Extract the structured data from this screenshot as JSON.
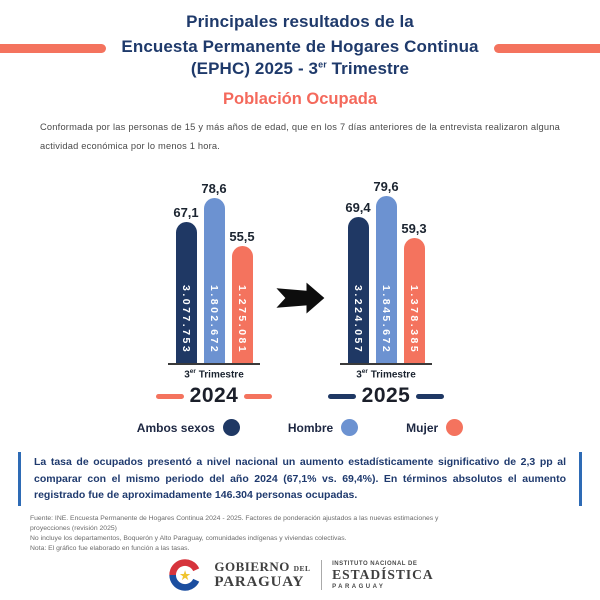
{
  "accent_colors": {
    "navy": "#1F3864",
    "light_blue": "#6C92D1",
    "coral": "#F4735E",
    "callout_bar": "#2E6BB5",
    "title_navy": "#1F3A6B"
  },
  "header": {
    "line1": "Principales resultados de la",
    "line2": "Encuesta Permanente de Hogares Continua",
    "line3_pre": "(EPHC) 2025 - 3",
    "line3_sup": "er",
    "line3_post": " Trimestre"
  },
  "section": {
    "title": "Población Ocupada"
  },
  "description": "Conformada por las personas de 15 y más años de edad, que en los 7 días anteriores de la entrevista realizaron alguna actividad económica por lo menos 1 hora.",
  "chart_data": {
    "type": "bar",
    "legend_position": "bottom",
    "categories": [
      "2024",
      "2025"
    ],
    "series": [
      {
        "name": "Ambos sexos",
        "color": "#1F3864",
        "rates": [
          67.1,
          69.4
        ],
        "absolutes": [
          "3.077.753",
          "3.224.057"
        ]
      },
      {
        "name": "Hombre",
        "color": "#6C92D1",
        "rates": [
          78.6,
          79.6
        ],
        "absolutes": [
          "1.802.672",
          "1.845.672"
        ]
      },
      {
        "name": "Mujer",
        "color": "#F4735E",
        "rates": [
          55.5,
          59.3
        ],
        "absolutes": [
          "1.275.081",
          "1.378.385"
        ]
      }
    ],
    "groups": [
      {
        "year": "2024",
        "period": {
          "pre": "3",
          "sup": "er",
          "post": " Trimestre"
        },
        "year_dash_color": "#F4735E",
        "bars": [
          {
            "series": "Ambos sexos",
            "rate": 67.1,
            "rate_label": "67,1",
            "absolute_label": "3.077.753",
            "color": "#1F3864"
          },
          {
            "series": "Hombre",
            "rate": 78.6,
            "rate_label": "78,6",
            "absolute_label": "1.802.672",
            "color": "#6C92D1"
          },
          {
            "series": "Mujer",
            "rate": 55.5,
            "rate_label": "55,5",
            "absolute_label": "1.275.081",
            "color": "#F4735E"
          }
        ]
      },
      {
        "year": "2025",
        "period": {
          "pre": "3",
          "sup": "er",
          "post": " Trimestre"
        },
        "year_dash_color": "#1F3864",
        "bars": [
          {
            "series": "Ambos sexos",
            "rate": 69.4,
            "rate_label": "69,4",
            "absolute_label": "3.224.057",
            "color": "#1F3864"
          },
          {
            "series": "Hombre",
            "rate": 79.6,
            "rate_label": "79,6",
            "absolute_label": "1.845.672",
            "color": "#6C92D1"
          },
          {
            "series": "Mujer",
            "rate": 59.3,
            "rate_label": "59,3",
            "absolute_label": "1.378.385",
            "color": "#F4735E"
          }
        ]
      }
    ],
    "legend": [
      {
        "label": "Ambos sexos",
        "color": "#1F3864"
      },
      {
        "label": "Hombre",
        "color": "#6C92D1"
      },
      {
        "label": "Mujer",
        "color": "#F4735E"
      }
    ]
  },
  "callout": {
    "text": "La tasa de ocupados presentó a nivel nacional un aumento estadísticamente significativo de 2,3 pp al comparar con el mismo periodo del año 2024 (67,1% vs. 69,4%). En términos absolutos el aumento registrado fue de aproximadamente 146.304 personas ocupadas."
  },
  "footnotes": [
    "Fuente: INE. Encuesta Permanente de Hogares Continua 2024 - 2025.  Factores de ponderación ajustados a las nuevas estimaciones y proyecciones (revisión 2025)",
    "No incluye los departamentos, Boquerón y Alto Paraguay, comunidades indígenas y viviendas colectivas.",
    "Nota: El gráfico fue elaborado en función a las tasas."
  ],
  "footer_logos": {
    "gobierno_word1": "GOBIERNO",
    "gobierno_word2": "DEL",
    "gobierno_word3": "PARAGUAY",
    "ine_line1": "INSTITUTO NACIONAL DE",
    "ine_line2": "ESTADÍSTICA",
    "ine_line3": "PARAGUAY"
  }
}
